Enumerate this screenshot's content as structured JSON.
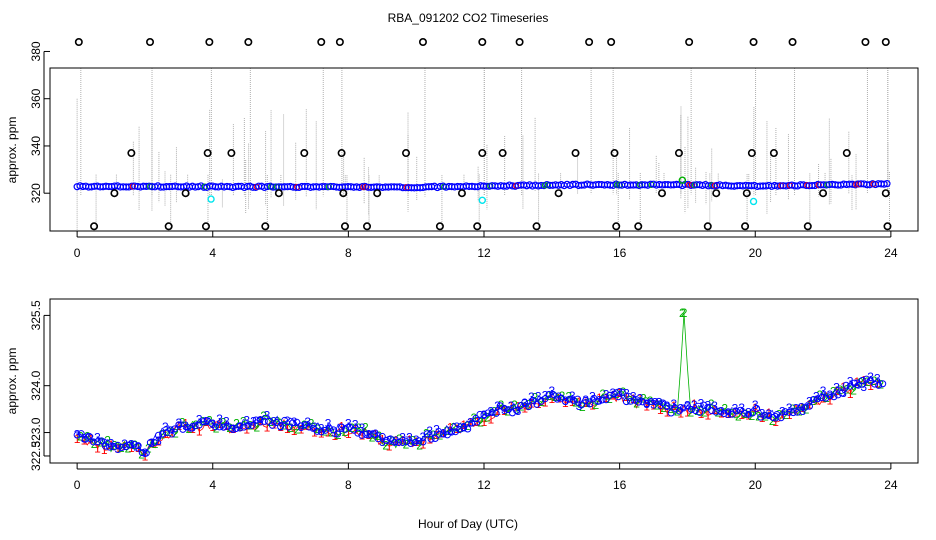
{
  "title": "RBA_091202  CO2 Timeseries",
  "xlabel": "Hour of Day (UTC)",
  "colors": {
    "ch1": "#ff0000",
    "ch2": "#00b000",
    "ch3": "#0000ff",
    "outlier": "#000000",
    "flag": "#00e5ee",
    "vline": "#b0b0b0"
  },
  "chart_data": [
    {
      "type": "scatter",
      "panel": "top",
      "ylabel": "approx. ppm",
      "x_ticks": [
        "0",
        "4",
        "8",
        "12",
        "16",
        "20",
        "24"
      ],
      "y_ticks": [
        "320",
        "340",
        "360",
        "380"
      ],
      "xlim": [
        -0.8,
        24.8
      ],
      "ylim": [
        304,
        373
      ],
      "baseline": [
        [
          0,
          322.9
        ],
        [
          3,
          322.8
        ],
        [
          8,
          322.6
        ],
        [
          10,
          322.5
        ],
        [
          12,
          323.0
        ],
        [
          15,
          323.6
        ],
        [
          18,
          323.5
        ],
        [
          20,
          323.0
        ],
        [
          22,
          323.5
        ],
        [
          24,
          324.0
        ]
      ],
      "outliers_high": [
        0.05,
        2.15,
        3.9,
        5.05,
        7.2,
        7.75,
        10.2,
        11.95,
        13.05,
        15.1,
        15.75,
        18.05,
        19.95,
        21.1,
        23.25,
        23.85
      ],
      "outliers_low": [
        0.5,
        2.7,
        3.8,
        5.55,
        7.9,
        8.55,
        10.7,
        11.8,
        13.55,
        15.9,
        16.55,
        18.6,
        19.7,
        21.55,
        23.9
      ],
      "outliers_mid": [
        1.6,
        3.85,
        4.55,
        6.7,
        7.8,
        9.7,
        11.95,
        12.55,
        14.7,
        15.85,
        17.75,
        19.9,
        20.55,
        22.7
      ],
      "outliers_near": [
        1.1,
        3.2,
        5.95,
        7.85,
        8.85,
        11.35,
        14.2,
        17.25,
        18.85,
        19.75,
        22.0,
        23.85
      ],
      "flagged": [
        [
          3.95,
          317.5
        ],
        [
          11.95,
          317
        ],
        [
          19.95,
          316.5
        ],
        [
          17.85,
          325.5
        ]
      ],
      "high_value": 384,
      "mid_value": 337,
      "near_value": 320,
      "low_value": 306
    },
    {
      "type": "scatter",
      "panel": "bottom",
      "ylabel": "approx. ppm",
      "x_ticks": [
        "0",
        "4",
        "8",
        "12",
        "16",
        "20",
        "24"
      ],
      "y_ticks": [
        "322.5",
        "323.0",
        "324.0",
        "325.5"
      ],
      "xlim": [
        -0.8,
        24.8
      ],
      "ylim": [
        322.35,
        325.85
      ],
      "series": [
        {
          "name": "1",
          "color": "#ff0000"
        },
        {
          "name": "2",
          "color": "#00b000"
        },
        {
          "name": "3",
          "color": "#0000ff"
        }
      ],
      "trend": [
        [
          0,
          322.95
        ],
        [
          0.5,
          322.8
        ],
        [
          1,
          322.7
        ],
        [
          1.5,
          322.75
        ],
        [
          2,
          322.6
        ],
        [
          2.5,
          322.95
        ],
        [
          3,
          323.1
        ],
        [
          3.5,
          323.15
        ],
        [
          4,
          323.2
        ],
        [
          4.5,
          323.1
        ],
        [
          5,
          323.15
        ],
        [
          5.5,
          323.25
        ],
        [
          6,
          323.2
        ],
        [
          6.5,
          323.15
        ],
        [
          7,
          323.1
        ],
        [
          7.5,
          323.05
        ],
        [
          8,
          323.05
        ],
        [
          8.5,
          323.0
        ],
        [
          9,
          322.85
        ],
        [
          9.5,
          322.75
        ],
        [
          10,
          322.8
        ],
        [
          10.5,
          322.95
        ],
        [
          11,
          323.05
        ],
        [
          11.5,
          323.15
        ],
        [
          12,
          323.35
        ],
        [
          12.5,
          323.5
        ],
        [
          13,
          323.5
        ],
        [
          13.5,
          323.65
        ],
        [
          14,
          323.75
        ],
        [
          14.5,
          323.7
        ],
        [
          15,
          323.6
        ],
        [
          15.5,
          323.75
        ],
        [
          16,
          323.8
        ],
        [
          16.5,
          323.65
        ],
        [
          17,
          323.65
        ],
        [
          17.5,
          323.5
        ],
        [
          18,
          323.55
        ],
        [
          18.5,
          323.5
        ],
        [
          19,
          323.5
        ],
        [
          19.5,
          323.4
        ],
        [
          20,
          323.45
        ],
        [
          20.5,
          323.35
        ],
        [
          21,
          323.4
        ],
        [
          21.5,
          323.55
        ],
        [
          22,
          323.75
        ],
        [
          22.5,
          323.9
        ],
        [
          23,
          324.0
        ],
        [
          23.5,
          324.1
        ],
        [
          23.8,
          324.05
        ]
      ],
      "spike": {
        "x": 17.85,
        "y": 325.55
      }
    }
  ]
}
